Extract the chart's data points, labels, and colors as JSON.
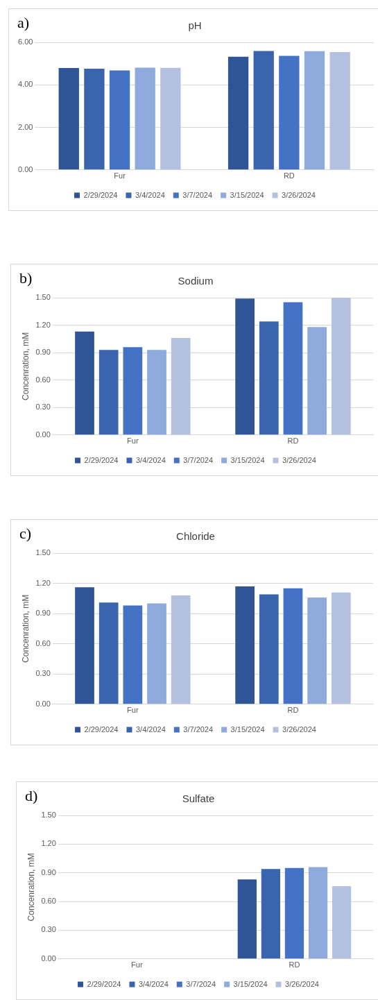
{
  "chart_data": [
    {
      "type": "bar",
      "title": "pH",
      "annotations": [
        "a)"
      ],
      "categories": [
        "Fur",
        "RD"
      ],
      "series": [
        {
          "name": "2/29/2024",
          "color": "#2f5597",
          "values": [
            4.79,
            5.32
          ]
        },
        {
          "name": "3/4/2024",
          "color": "#3a64ad",
          "values": [
            4.76,
            5.59
          ]
        },
        {
          "name": "3/7/2024",
          "color": "#4472c4",
          "values": [
            4.68,
            5.36
          ]
        },
        {
          "name": "3/15/2024",
          "color": "#8faadc",
          "values": [
            4.81,
            5.58
          ]
        },
        {
          "name": "3/26/2024",
          "color": "#b4c0e0",
          "values": [
            4.8,
            5.54
          ]
        }
      ],
      "ylim": [
        0,
        6
      ],
      "yticks": [
        {
          "value": 0,
          "label": "0.00"
        },
        {
          "value": 2,
          "label": "2.00"
        },
        {
          "value": 4,
          "label": "4.00"
        },
        {
          "value": 6,
          "label": "6.00"
        }
      ],
      "grid": "y",
      "legend": "bottom"
    },
    {
      "type": "bar",
      "title": "Sodium",
      "ylabel": "Concenration, mM",
      "annotations": [
        "b)"
      ],
      "categories": [
        "Fur",
        "RD"
      ],
      "series": [
        {
          "name": "2/29/2024",
          "color": "#2f5597",
          "values": [
            1.13,
            1.49
          ]
        },
        {
          "name": "3/4/2024",
          "color": "#3a64ad",
          "values": [
            0.93,
            1.24
          ]
        },
        {
          "name": "3/7/2024",
          "color": "#4472c4",
          "values": [
            0.96,
            1.45
          ]
        },
        {
          "name": "3/15/2024",
          "color": "#8faadc",
          "values": [
            0.93,
            1.18
          ]
        },
        {
          "name": "3/26/2024",
          "color": "#b4c0e0",
          "values": [
            1.06,
            1.5
          ]
        }
      ],
      "ylim": [
        0,
        1.5
      ],
      "yticks": [
        {
          "value": 0,
          "label": "0.00"
        },
        {
          "value": 0.3,
          "label": "0.30"
        },
        {
          "value": 0.6,
          "label": "0.60"
        },
        {
          "value": 0.9,
          "label": "0.90"
        },
        {
          "value": 1.2,
          "label": "1.20"
        },
        {
          "value": 1.5,
          "label": "1.50"
        }
      ],
      "grid": "y",
      "legend": "bottom"
    },
    {
      "type": "bar",
      "title": "Chloride",
      "ylabel": "Concenration, mM",
      "annotations": [
        "c)"
      ],
      "categories": [
        "Fur",
        "RD"
      ],
      "series": [
        {
          "name": "2/29/2024",
          "color": "#2f5597",
          "values": [
            1.16,
            1.17
          ]
        },
        {
          "name": "3/4/2024",
          "color": "#3a64ad",
          "values": [
            1.01,
            1.09
          ]
        },
        {
          "name": "3/7/2024",
          "color": "#4472c4",
          "values": [
            0.98,
            1.15
          ]
        },
        {
          "name": "3/15/2024",
          "color": "#8faadc",
          "values": [
            1.0,
            1.06
          ]
        },
        {
          "name": "3/26/2024",
          "color": "#b4c0e0",
          "values": [
            1.08,
            1.11
          ]
        }
      ],
      "ylim": [
        0,
        1.5
      ],
      "yticks": [
        {
          "value": 0,
          "label": "0.00"
        },
        {
          "value": 0.3,
          "label": "0.30"
        },
        {
          "value": 0.6,
          "label": "0.60"
        },
        {
          "value": 0.9,
          "label": "0.90"
        },
        {
          "value": 1.2,
          "label": "1.20"
        },
        {
          "value": 1.5,
          "label": "1.50"
        }
      ],
      "grid": "y",
      "legend": "bottom"
    },
    {
      "type": "bar",
      "title": "Sulfate",
      "ylabel": "Concenration, mM",
      "annotations": [
        "d)"
      ],
      "categories": [
        "Fur",
        "RD"
      ],
      "series": [
        {
          "name": "2/29/2024",
          "color": "#2f5597",
          "values": [
            null,
            0.83
          ]
        },
        {
          "name": "3/4/2024",
          "color": "#3a64ad",
          "values": [
            null,
            0.94
          ]
        },
        {
          "name": "3/7/2024",
          "color": "#4472c4",
          "values": [
            null,
            0.95
          ]
        },
        {
          "name": "3/15/2024",
          "color": "#8faadc",
          "values": [
            null,
            0.96
          ]
        },
        {
          "name": "3/26/2024",
          "color": "#b4c0e0",
          "values": [
            null,
            0.76
          ]
        }
      ],
      "ylim": [
        0,
        1.5
      ],
      "yticks": [
        {
          "value": 0,
          "label": "0.00"
        },
        {
          "value": 0.3,
          "label": "0.30"
        },
        {
          "value": 0.6,
          "label": "0.60"
        },
        {
          "value": 0.9,
          "label": "0.90"
        },
        {
          "value": 1.2,
          "label": "1.20"
        },
        {
          "value": 1.5,
          "label": "1.50"
        }
      ],
      "grid": "y",
      "legend": "bottom"
    }
  ]
}
